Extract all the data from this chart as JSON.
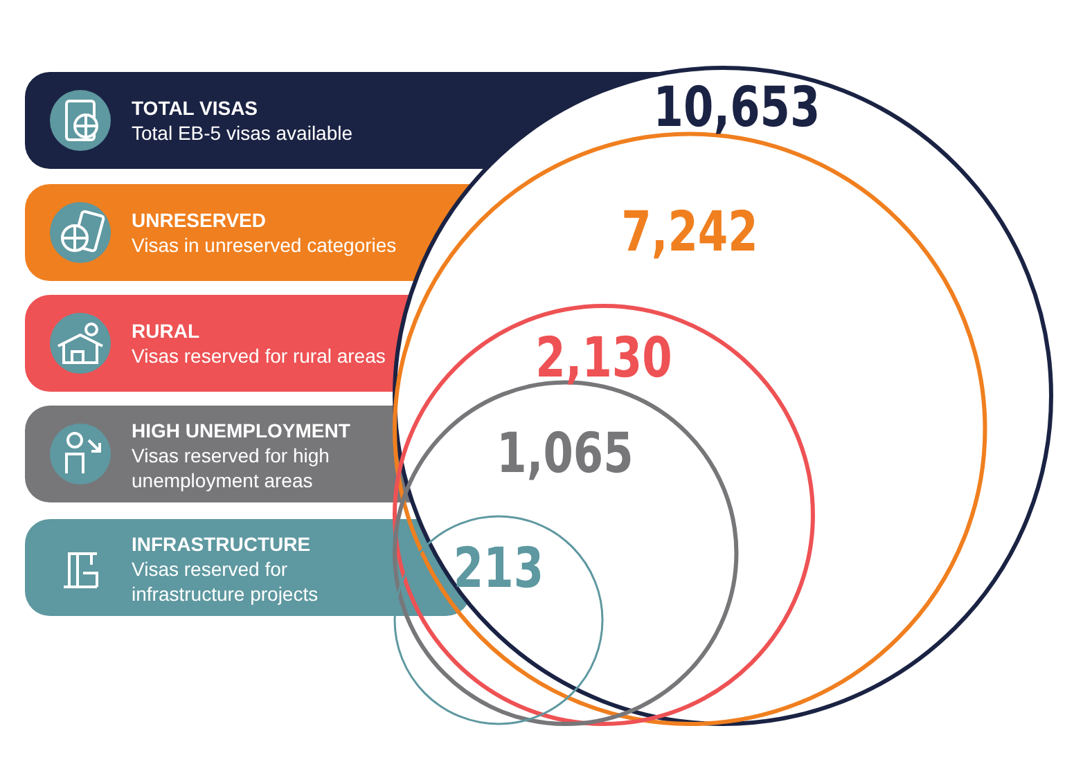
{
  "chart_data": {
    "type": "other",
    "categories": [
      "TOTAL VISAS",
      "UNRESERVED",
      "RURAL",
      "HIGH UNEMPLOYMENT",
      "INFRASTRUCTURE"
    ],
    "values": [
      10653,
      7242,
      2130,
      1065,
      213
    ],
    "value_labels": [
      "10,653",
      "7,242",
      "2,130",
      "1,065",
      "213"
    ],
    "colors": [
      "#1b2344",
      "#f07f1f",
      "#ee5254",
      "#77777a",
      "#5e98a0"
    ],
    "annotations": [
      "Total EB-5 visas available",
      "Visas in unreserved categories",
      "Visas reserved for rural areas",
      "Visas reserved for high unemployment areas",
      "Visas reserved for infrastructure projects"
    ]
  }
}
